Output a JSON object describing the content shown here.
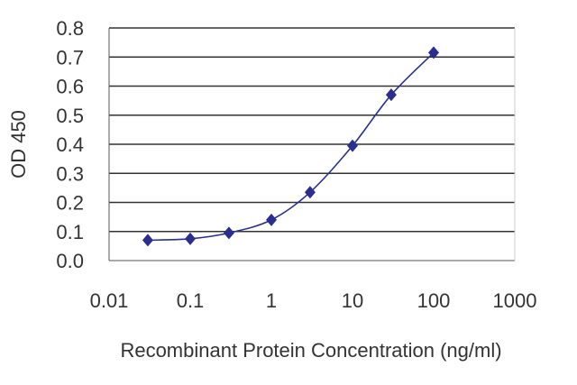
{
  "chart_data": {
    "type": "line",
    "title": "",
    "xlabel": "Recombinant Protein Concentration (ng/ml)",
    "ylabel": "OD 450",
    "x_scale": "log",
    "xlim": [
      0.01,
      1000
    ],
    "ylim": [
      0.0,
      0.8
    ],
    "x_ticks": [
      0.01,
      0.1,
      1,
      10,
      100,
      1000
    ],
    "x_tick_labels": [
      "0.01",
      "0.1",
      "1",
      "10",
      "100",
      "1000"
    ],
    "y_ticks": [
      0.0,
      0.1,
      0.2,
      0.3,
      0.4,
      0.5,
      0.6,
      0.7,
      0.8
    ],
    "y_tick_labels": [
      "0.0",
      "0.1",
      "0.2",
      "0.3",
      "0.4",
      "0.5",
      "0.6",
      "0.7",
      "0.8"
    ],
    "grid": "horizontal",
    "series": [
      {
        "x": [
          0.03,
          0.1,
          0.3,
          1,
          3,
          10,
          30,
          100
        ],
        "y": [
          0.07,
          0.075,
          0.095,
          0.14,
          0.235,
          0.395,
          0.57,
          0.715
        ]
      }
    ],
    "colors": {
      "series": "#2a2f8f",
      "grid": "#333333",
      "axis": "#555555"
    }
  }
}
